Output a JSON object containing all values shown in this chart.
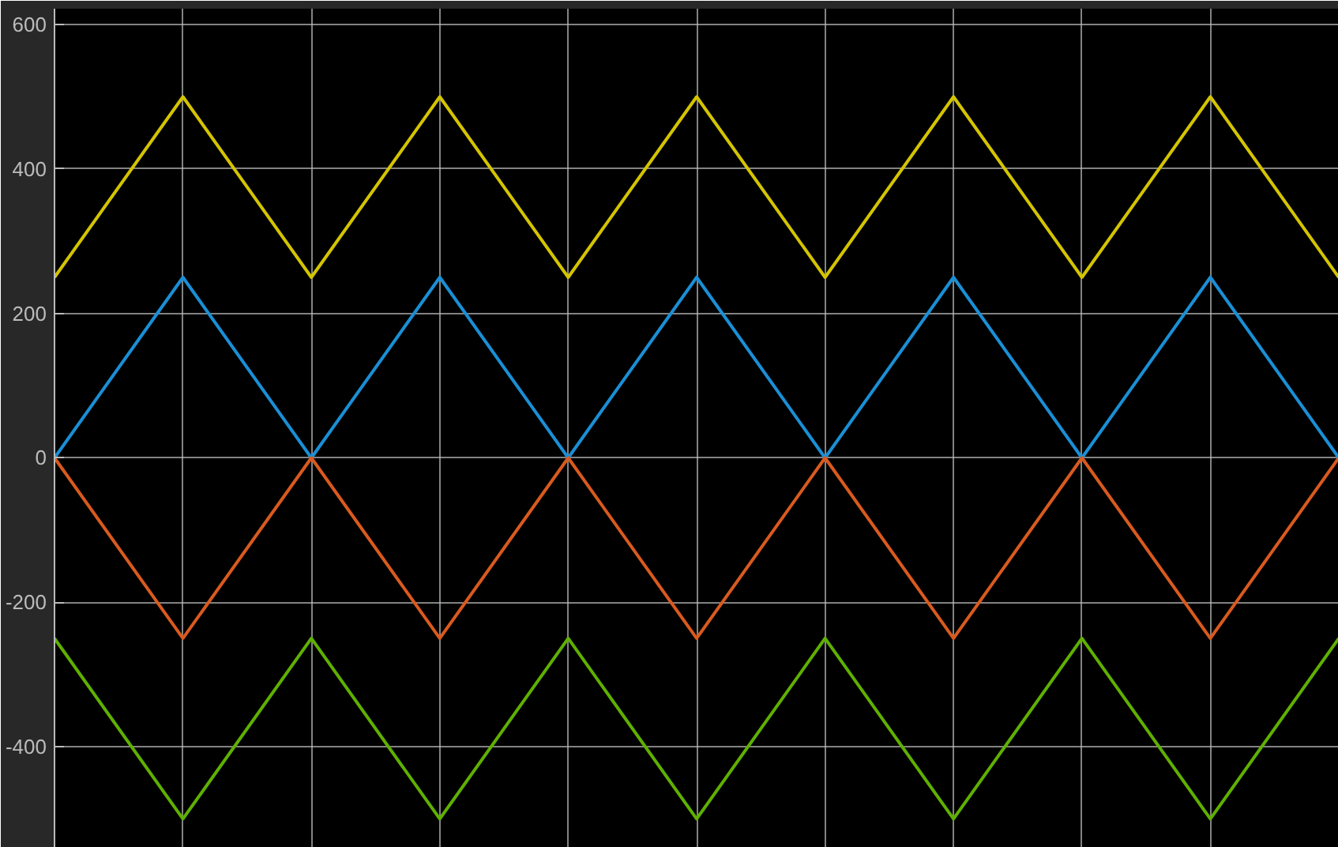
{
  "chart_data": {
    "type": "line",
    "categories": [
      null,
      null,
      null,
      null,
      null,
      null,
      null,
      null,
      null,
      null,
      null
    ],
    "series": [
      {
        "color": "#d4c400",
        "values": [
          250,
          500,
          250,
          500,
          250,
          500,
          250,
          500,
          250,
          500,
          250
        ]
      },
      {
        "color": "#1a8fd6",
        "values": [
          0,
          250,
          0,
          250,
          0,
          250,
          0,
          250,
          0,
          250,
          0
        ]
      },
      {
        "color": "#d95a1e",
        "values": [
          0,
          -250,
          0,
          -250,
          0,
          -250,
          0,
          -250,
          0,
          -250,
          0
        ]
      },
      {
        "color": "#5fb000",
        "values": [
          -250,
          -500,
          -250,
          -500,
          -250,
          -500,
          -250,
          -500,
          -250,
          -500,
          -250
        ]
      }
    ],
    "ylim": [
      -540,
      622
    ],
    "yticks": [
      -400,
      -200,
      0,
      200,
      400,
      600
    ],
    "tick_labels": "y",
    "grid": true,
    "line_style": "solid",
    "marker": "none"
  }
}
